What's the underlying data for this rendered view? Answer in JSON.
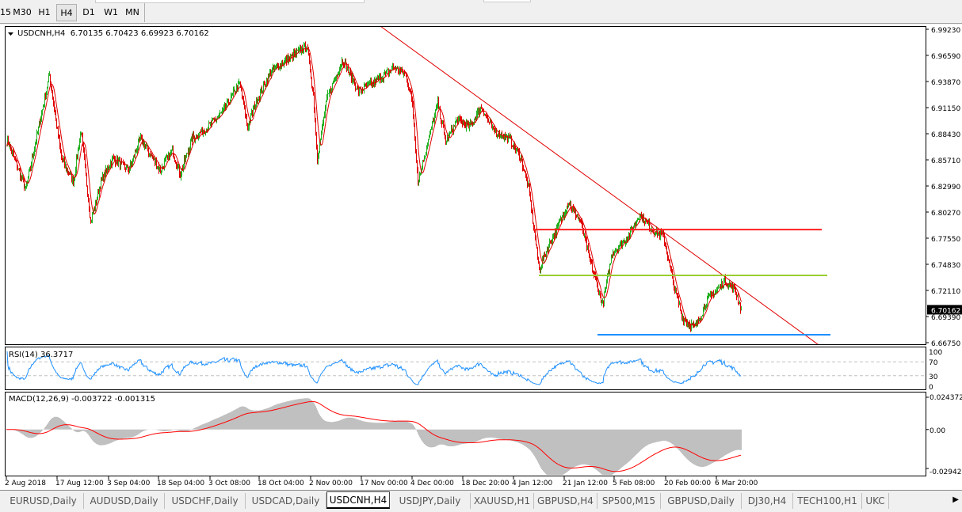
{
  "timeframes": [
    {
      "label": "15",
      "active": false
    },
    {
      "label": "M30",
      "active": false
    },
    {
      "label": "H1",
      "active": false
    },
    {
      "label": "H4",
      "active": true
    },
    {
      "label": "D1",
      "active": false
    },
    {
      "label": "W1",
      "active": false
    },
    {
      "label": "MN",
      "active": false
    }
  ],
  "chart": {
    "symbol_header": "USDCNH,H4  6.70135 6.70423 6.69923 6.70162",
    "current_price": "6.70162",
    "price_axis": [
      "6.99230",
      "6.96590",
      "6.93870",
      "6.91150",
      "6.88430",
      "6.85710",
      "6.82990",
      "6.80270",
      "6.77550",
      "6.74830",
      "6.72110",
      "6.69390",
      "6.66750"
    ],
    "price_range": [
      6.6675,
      6.9923
    ],
    "rsi": {
      "label": "RSI(14) 36.3717",
      "levels": [
        "100",
        "70",
        "30",
        "0"
      ]
    },
    "macd": {
      "label": "MACD(12,26,9) -0.003722 -0.001315",
      "axis": [
        "0.024372",
        "0.00",
        "-0.029423"
      ],
      "range": [
        -0.029423,
        0.024372
      ]
    },
    "time_axis": [
      {
        "bar": 0,
        "label": "2 Aug 2018"
      },
      {
        "bar": 64,
        "label": "17 Aug 12:00"
      },
      {
        "bar": 129,
        "label": "3 Sep 04:00"
      },
      {
        "bar": 192,
        "label": "18 Sep 04:00"
      },
      {
        "bar": 257,
        "label": "3 Oct 08:00"
      },
      {
        "bar": 319,
        "label": "18 Oct 04:00"
      },
      {
        "bar": 384,
        "label": "2 Nov 00:00"
      },
      {
        "bar": 448,
        "label": "17 Nov 00:00"
      },
      {
        "bar": 512,
        "label": "4 Dec 00:00"
      },
      {
        "bar": 576,
        "label": "18 Dec 20:00"
      },
      {
        "bar": 640,
        "label": "4 Jan 12:00"
      },
      {
        "bar": 704,
        "label": "21 Jan 12:00"
      },
      {
        "bar": 767,
        "label": "5 Feb 08:00"
      },
      {
        "bar": 832,
        "label": "20 Feb 00:00"
      },
      {
        "bar": 896,
        "label": "6 Mar 20:00"
      }
    ],
    "colors": {
      "bull": "#22b020",
      "bear": "#e00000",
      "ma": "#e00000",
      "rsi": "#1e90ff",
      "macd_hist": "#c0c0c0",
      "macd_signal": "#ff0000",
      "trendline": "#e00000",
      "resistance": "#ff2020",
      "support_mid": "#9acd32",
      "support_low": "#1e90ff"
    },
    "price_path": [
      [
        2,
        6.875
      ],
      [
        24,
        6.826
      ],
      [
        54,
        6.945
      ],
      [
        69,
        6.859
      ],
      [
        84,
        6.834
      ],
      [
        94,
        6.887
      ],
      [
        106,
        6.793
      ],
      [
        119,
        6.834
      ],
      [
        134,
        6.859
      ],
      [
        154,
        6.846
      ],
      [
        169,
        6.879
      ],
      [
        194,
        6.846
      ],
      [
        209,
        6.867
      ],
      [
        219,
        6.842
      ],
      [
        234,
        6.879
      ],
      [
        254,
        6.891
      ],
      [
        274,
        6.908
      ],
      [
        294,
        6.937
      ],
      [
        304,
        6.891
      ],
      [
        314,
        6.916
      ],
      [
        334,
        6.949
      ],
      [
        354,
        6.961
      ],
      [
        379,
        6.975
      ],
      [
        387,
        6.924
      ],
      [
        392,
        6.859
      ],
      [
        404,
        6.92
      ],
      [
        424,
        6.961
      ],
      [
        444,
        6.928
      ],
      [
        464,
        6.937
      ],
      [
        489,
        6.953
      ],
      [
        504,
        6.945
      ],
      [
        512,
        6.916
      ],
      [
        519,
        6.834
      ],
      [
        529,
        6.867
      ],
      [
        544,
        6.916
      ],
      [
        554,
        6.875
      ],
      [
        569,
        6.899
      ],
      [
        584,
        6.891
      ],
      [
        599,
        6.912
      ],
      [
        614,
        6.887
      ],
      [
        634,
        6.879
      ],
      [
        649,
        6.859
      ],
      [
        659,
        6.826
      ],
      [
        672,
        6.744
      ],
      [
        684,
        6.768
      ],
      [
        694,
        6.785
      ],
      [
        709,
        6.813
      ],
      [
        724,
        6.793
      ],
      [
        739,
        6.744
      ],
      [
        752,
        6.707
      ],
      [
        764,
        6.76
      ],
      [
        784,
        6.777
      ],
      [
        799,
        6.801
      ],
      [
        814,
        6.785
      ],
      [
        829,
        6.777
      ],
      [
        844,
        6.719
      ],
      [
        854,
        6.691
      ],
      [
        869,
        6.683
      ],
      [
        884,
        6.711
      ],
      [
        906,
        6.731
      ],
      [
        919,
        6.723
      ],
      [
        927,
        6.70162
      ]
    ],
    "lines": {
      "trendline": {
        "from": [
          472,
          6.9956
        ],
        "to": [
          1024,
          6.6658
        ]
      },
      "resistance": {
        "price": 6.7847,
        "from": 666,
        "to": 1029
      },
      "support_mid": {
        "price": 6.7372,
        "from": 672,
        "to": 1036
      },
      "support_low": {
        "price": 6.6757,
        "from": 746,
        "to": 1040
      }
    }
  },
  "tabs": [
    {
      "label": "EURUSD,Daily",
      "active": false
    },
    {
      "label": "AUDUSD,Daily",
      "active": false
    },
    {
      "label": "USDCHF,Daily",
      "active": false
    },
    {
      "label": "USDCAD,Daily",
      "active": false
    },
    {
      "label": "USDCNH,H4",
      "active": true
    },
    {
      "label": "USDJPY,Daily",
      "active": false
    },
    {
      "label": "XAUUSD,H1",
      "active": false
    },
    {
      "label": "GBPUSD,H4",
      "active": false
    },
    {
      "label": "SP500,M15",
      "active": false
    },
    {
      "label": "GBPUSD,Daily",
      "active": false
    },
    {
      "label": "DJ30,H4",
      "active": false
    },
    {
      "label": "TECH100,H1",
      "active": false
    },
    {
      "label": "UKC",
      "active": false
    }
  ]
}
